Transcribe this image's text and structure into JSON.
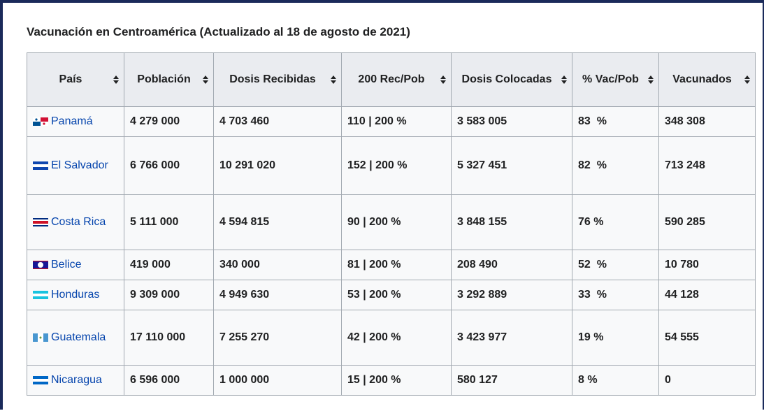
{
  "title": "Vacunación en Centroamérica (Actualizado al 18 de agosto de 2021)",
  "table": {
    "headers": [
      "País",
      "Población",
      "Dosis Recibidas",
      "200 Rec/Pob",
      "Dosis Colocadas",
      "% Vac/Pob",
      "Vacunados"
    ],
    "rows": [
      [
        "Panamá",
        "4 279 000",
        "4 703 460",
        "110 | 200 %",
        "3 583 005",
        "83  %",
        "348 308"
      ],
      [
        "El Salvador",
        "6 766 000",
        "10 291 020",
        "152 | 200 %",
        "5 327 451",
        "82  %",
        "713 248"
      ],
      [
        "Costa Rica",
        "5 111 000",
        "4 594 815",
        "90 | 200 %",
        "3 848 155",
        "76 %",
        "590 285"
      ],
      [
        "Belice",
        "419 000",
        "340 000",
        "81 | 200 %",
        "208 490",
        "52  %",
        "10 780"
      ],
      [
        "Honduras",
        "9 309 000",
        "4 949 630",
        "53 | 200 %",
        "3 292 889",
        "33  %",
        "44 128"
      ],
      [
        "Guatemala",
        "17 110 000",
        "7 255 270",
        "42 | 200 %",
        "3 423 977",
        "19 %",
        "54 555"
      ],
      [
        "Nicaragua",
        "6 596 000",
        "1 000 000",
        "15 | 200 %",
        "580 127",
        "8 %",
        "0"
      ]
    ]
  }
}
